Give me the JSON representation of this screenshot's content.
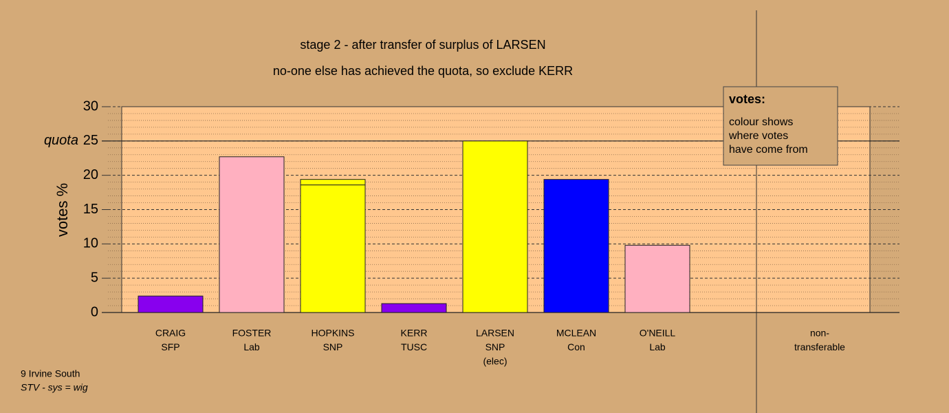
{
  "chart_data": {
    "type": "stacked-bar",
    "title": "stage 2 - after transfer of surplus of LARSEN",
    "subtitle": "no-one else has achieved the quota, so exclude KERR",
    "y_label": "votes %",
    "categories": [
      [
        "CRAIG",
        "SFP"
      ],
      [
        "FOSTER",
        "Lab"
      ],
      [
        "HOPKINS",
        "SNP"
      ],
      [
        "KERR",
        "TUSC"
      ],
      [
        "LARSEN",
        "SNP",
        "(elec)"
      ],
      [
        "MCLEAN",
        "Con"
      ],
      [
        "O'NEILL",
        "Lab"
      ],
      [
        "non-",
        "transferable"
      ]
    ],
    "series": [
      {
        "values": [
          2.4,
          22.7,
          18.6,
          1.3,
          25.0,
          19.4,
          9.8,
          0
        ],
        "colors": [
          "#8800ee",
          "#ffb0c0",
          "#ffff00",
          "#8800ee",
          "#ffff00",
          "#0000ff",
          "#ffb0c0",
          "#888888"
        ]
      },
      {
        "values": [
          0,
          0,
          0.8,
          0,
          0,
          0,
          0,
          0
        ],
        "color": "#ffff00"
      }
    ],
    "ylim": [
      0,
      30
    ],
    "yticks": [
      0,
      5,
      10,
      15,
      20,
      25,
      30
    ],
    "minor_yticks": [
      1,
      2,
      3,
      4,
      6,
      7,
      8,
      9,
      11,
      12,
      13,
      14,
      16,
      17,
      18,
      19,
      21,
      22,
      23,
      24,
      26,
      27,
      28,
      29
    ],
    "quota": {
      "value": 25,
      "label": "quota"
    },
    "grid": true,
    "note": {
      "title": "votes:",
      "lines": [
        "colour shows",
        "where votes",
        "have come from"
      ]
    },
    "footer": [
      "9 Irvine South",
      "STV - sys = wig"
    ]
  }
}
